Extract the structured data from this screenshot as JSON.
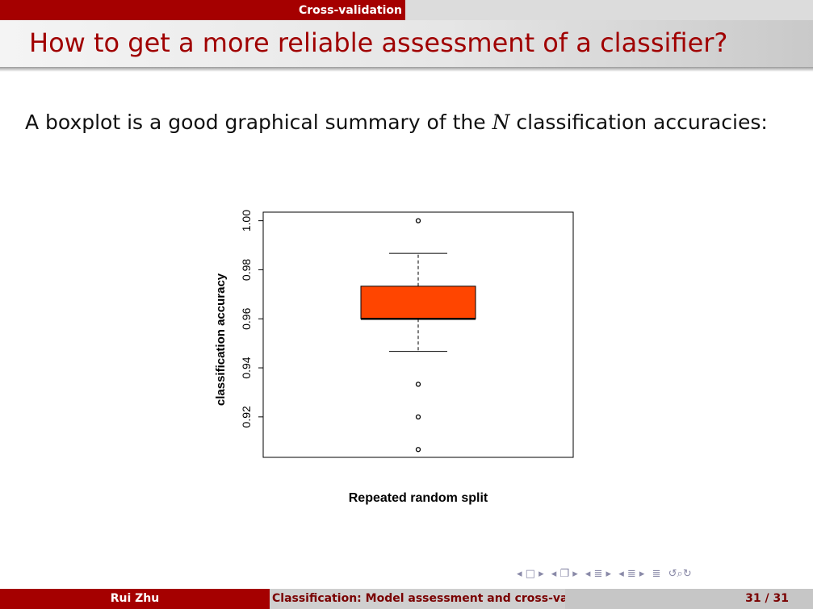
{
  "header": {
    "section": "Cross-validation",
    "title": "How to get a more reliable assessment of a classifier?"
  },
  "body": {
    "intro_before": "A boxplot is a good graphical summary of the ",
    "intro_math": "N",
    "intro_after": " classification accuracies:"
  },
  "chart_data": {
    "type": "boxplot",
    "xlabel": "Repeated random split",
    "ylabel": "classification accuracy",
    "ylim": [
      0.9035,
      1.0035
    ],
    "yticks": [
      "0.92",
      "0.94",
      "0.96",
      "0.98",
      "1.00"
    ],
    "box": {
      "q1": 0.96,
      "median": 0.96,
      "q3": 0.9733,
      "whisker_low": 0.9467,
      "whisker_high": 0.9867
    },
    "outliers": [
      1.0,
      0.9333,
      0.92,
      0.9067
    ],
    "fill_color": "#ff4500",
    "grid": false
  },
  "nav": {
    "icons": [
      "◂ □ ▸",
      "◂ ❐ ▸",
      "◂ ≣ ▸",
      "◂ ≣ ▸",
      "≣",
      "↺⌕↻"
    ]
  },
  "footer": {
    "author": "Rui Zhu",
    "talk_title": "Classification: Model assessment and cross-validation",
    "page": "31 / 31"
  },
  "colors": {
    "accent": "#a50000",
    "title_text": "#a00000"
  }
}
